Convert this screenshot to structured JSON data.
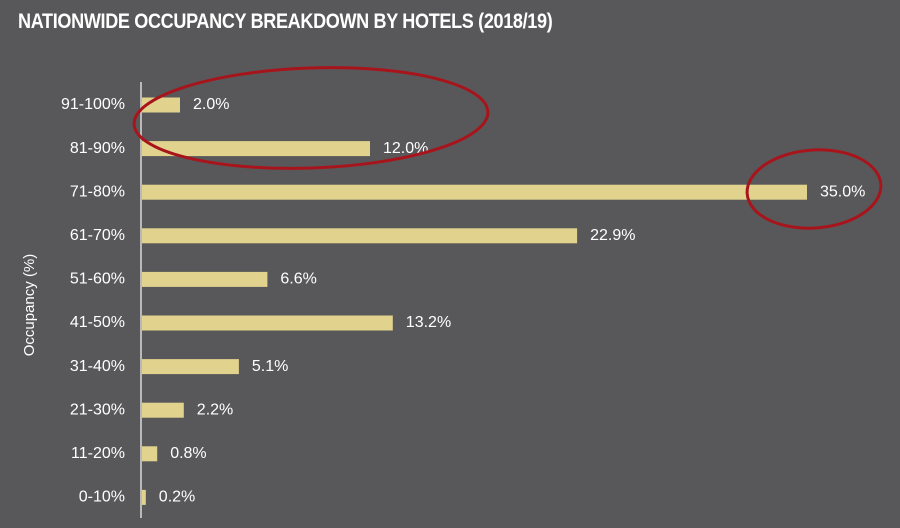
{
  "chart_data": {
    "type": "bar",
    "orientation": "horizontal",
    "title": "NATIONWIDE OCCUPANCY BREAKDOWN BY HOTELS (2018/19)",
    "ylabel": "Occupancy (%)",
    "xlabel": "",
    "categories": [
      "91-100%",
      "81-90%",
      "71-80%",
      "61-70%",
      "51-60%",
      "41-50%",
      "31-40%",
      "21-30%",
      "11-20%",
      "0-10%"
    ],
    "values": [
      2.0,
      12.0,
      35.0,
      22.9,
      6.6,
      13.2,
      5.1,
      2.2,
      0.8,
      0.2
    ],
    "value_labels": [
      "2.0%",
      "12.0%",
      "35.0%",
      "22.9%",
      "6.6%",
      "13.2%",
      "5.1%",
      "2.2%",
      "0.8%",
      "0.2%"
    ],
    "xlim": [
      0,
      35
    ],
    "grid": false,
    "legend": "none",
    "highlighted_categories": [
      "91-100%",
      "81-90%",
      "71-80%"
    ],
    "colors": {
      "background": "#58585a",
      "bar": "#e1d38e",
      "axis": "#b9b9b9",
      "text": "#ffffff",
      "highlight_ellipse": "#a8141b"
    }
  }
}
